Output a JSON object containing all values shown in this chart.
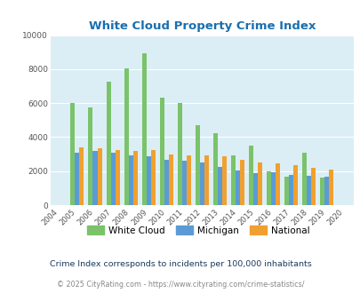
{
  "title": "White Cloud Property Crime Index",
  "years": [
    2004,
    2005,
    2006,
    2007,
    2008,
    2009,
    2010,
    2011,
    2012,
    2013,
    2014,
    2015,
    2016,
    2017,
    2018,
    2019,
    2020
  ],
  "white_cloud": [
    null,
    6000,
    5750,
    7250,
    8050,
    8950,
    6300,
    6000,
    4700,
    4250,
    2950,
    3500,
    2000,
    1650,
    3100,
    1600,
    null
  ],
  "michigan": [
    null,
    3100,
    3200,
    3100,
    2950,
    2850,
    2650,
    2600,
    2500,
    2250,
    2050,
    1900,
    1950,
    1800,
    1700,
    1650,
    null
  ],
  "national": [
    null,
    3400,
    3350,
    3250,
    3200,
    3250,
    3000,
    2950,
    2900,
    2850,
    2650,
    2500,
    2450,
    2350,
    2200,
    2100,
    null
  ],
  "white_cloud_color": "#7ac36a",
  "michigan_color": "#5b9bd5",
  "national_color": "#f0a030",
  "background_color": "#dceef5",
  "ylim": [
    0,
    10000
  ],
  "yticks": [
    0,
    2000,
    4000,
    6000,
    8000,
    10000
  ],
  "legend_labels": [
    "White Cloud",
    "Michigan",
    "National"
  ],
  "footnote1": "Crime Index corresponds to incidents per 100,000 inhabitants",
  "footnote2": "© 2025 CityRating.com - https://www.cityrating.com/crime-statistics/",
  "bar_width": 0.25,
  "title_color": "#1a6faf",
  "footnote1_color": "#1a3a5c",
  "footnote2_color": "#888888"
}
